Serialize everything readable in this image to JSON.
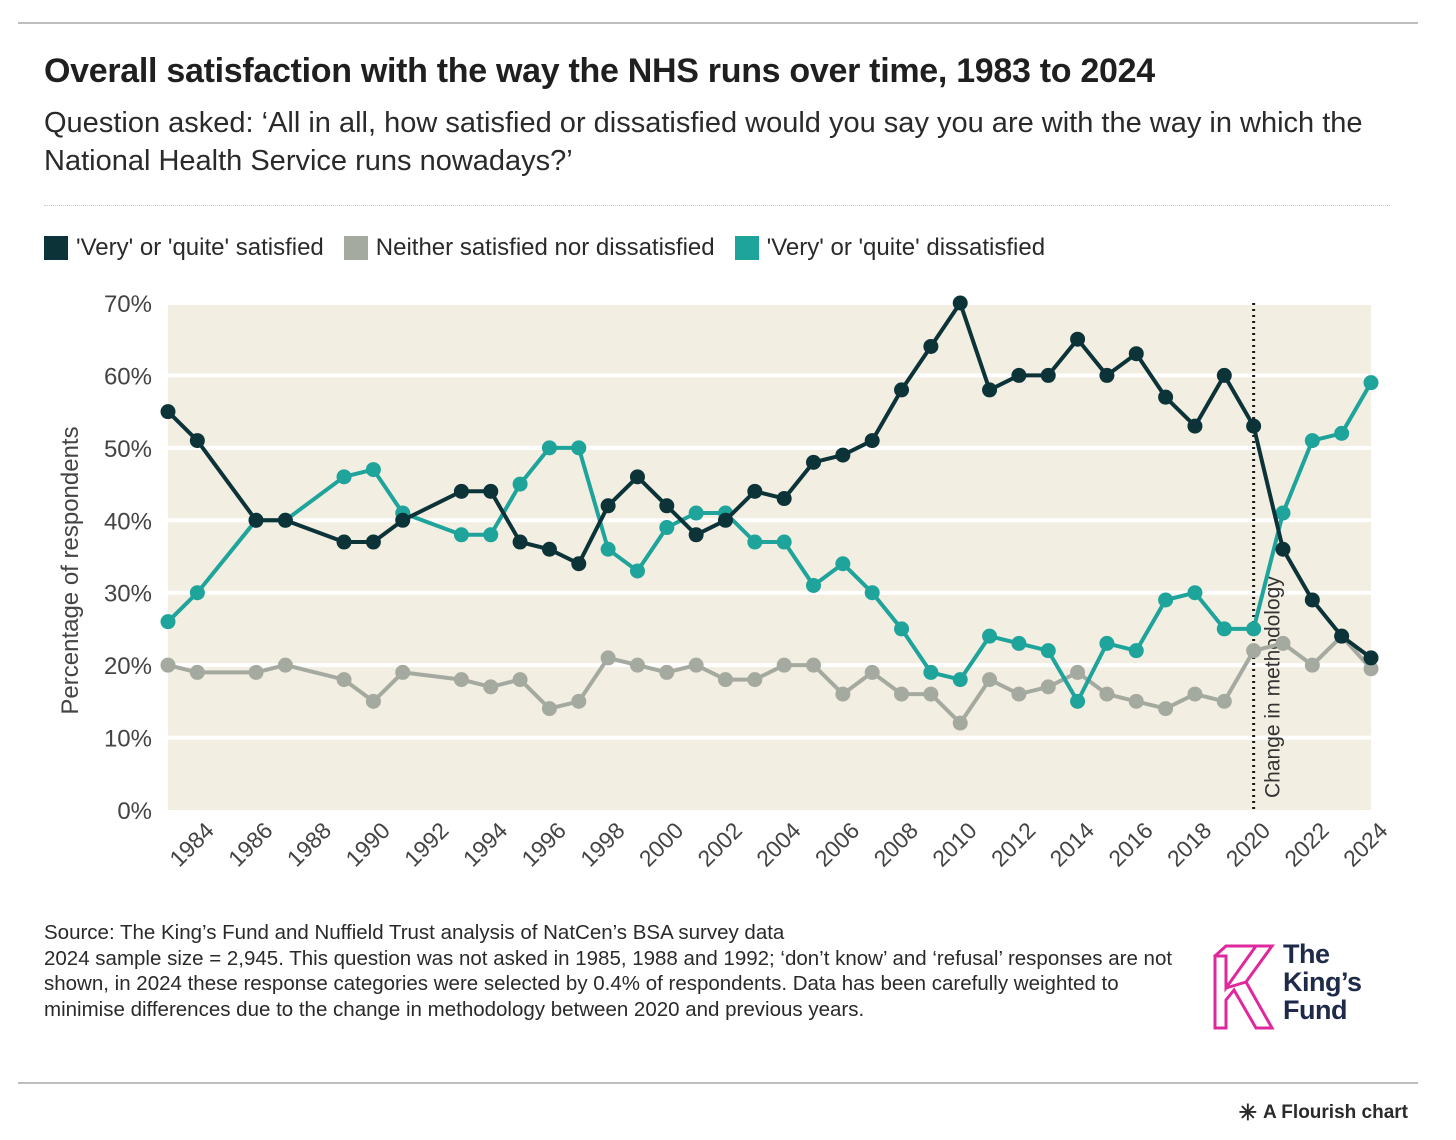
{
  "title": "Overall satisfaction with the way the NHS runs over time, 1983 to 2024",
  "subtitle": "Question asked: ‘All in all, how satisfied or dissatisfied would you say you are with the way in which the National Health Service runs nowadays?’",
  "colors": {
    "satisfied": "#0c3338",
    "neither": "#a5aaa0",
    "dissatisfied": "#1ea49b",
    "plot_bg": "#f3eee2",
    "brand": "#e0289e"
  },
  "source": {
    "line1": "Source: The King’s Fund and Nuffield Trust analysis of NatCen’s BSA survey data",
    "line2": "2024 sample size = 2,945. This question was not asked in 1985, 1988 and 1992; ‘don’t know’ and ‘refusal’ responses are not shown, in 2024 these response categories were selected by 0.4% of respondents. Data has been carefully weighted to minimise differences due to the change in methodology between 2020 and previous years."
  },
  "logo": {
    "line1": "The",
    "line2": "King’s",
    "line3": "Fund"
  },
  "flourish_label": "A Flourish chart",
  "chart_data": {
    "type": "line",
    "title": "Overall satisfaction with the way the NHS runs over time, 1983 to 2024",
    "xlabel": "",
    "ylabel": "Percentage of respondents",
    "ylim": [
      0,
      70
    ],
    "xlim": [
      1983,
      2024
    ],
    "yticks": [
      "0%",
      "10%",
      "20%",
      "30%",
      "40%",
      "50%",
      "60%",
      "70%"
    ],
    "xticks": [
      "1984",
      "1986",
      "1988",
      "1990",
      "1992",
      "1994",
      "1996",
      "1998",
      "2000",
      "2002",
      "2004",
      "2006",
      "2008",
      "2010",
      "2012",
      "2014",
      "2016",
      "2018",
      "2020",
      "2022",
      "2024"
    ],
    "grid": true,
    "legend_position": "top-left",
    "annotation": {
      "x": 2020,
      "label": "Change in methodology"
    },
    "x": [
      1983,
      1984,
      1986,
      1987,
      1989,
      1990,
      1991,
      1993,
      1994,
      1995,
      1996,
      1997,
      1998,
      1999,
      2000,
      2001,
      2002,
      2003,
      2004,
      2005,
      2006,
      2007,
      2008,
      2009,
      2010,
      2011,
      2012,
      2013,
      2014,
      2015,
      2016,
      2017,
      2018,
      2019,
      2020,
      2021,
      2022,
      2023,
      2024
    ],
    "series": [
      {
        "name": "'Very' or 'quite' satisfied",
        "key": "satisfied",
        "values": [
          55,
          51,
          40,
          40,
          37,
          37,
          40,
          44,
          44,
          37,
          36,
          34,
          42,
          46,
          42,
          38,
          40,
          44,
          43,
          48,
          49,
          51,
          58,
          64,
          70,
          58,
          60,
          60,
          65,
          60,
          63,
          57,
          53,
          60,
          53,
          36,
          29,
          24,
          21
        ]
      },
      {
        "name": "Neither satisfied nor dissatisfied",
        "key": "neither",
        "values": [
          20,
          19,
          19,
          20,
          18,
          15,
          19,
          18,
          17,
          18,
          14,
          15,
          21,
          20,
          19,
          20,
          18,
          18,
          20,
          20,
          16,
          19,
          16,
          16,
          12,
          18,
          16,
          17,
          19,
          16,
          15,
          14,
          16,
          15,
          22,
          23,
          20,
          24,
          19.5
        ]
      },
      {
        "name": "'Very' or 'quite' dissatisfied",
        "key": "dissatisfied",
        "values": [
          26,
          30,
          40,
          40,
          46,
          47,
          41,
          38,
          38,
          45,
          50,
          50,
          36,
          33,
          39,
          41,
          41,
          37,
          37,
          31,
          34,
          30,
          25,
          19,
          18,
          24,
          23,
          22,
          15,
          23,
          22,
          29,
          30,
          25,
          25,
          41,
          51,
          52,
          59
        ]
      }
    ]
  }
}
